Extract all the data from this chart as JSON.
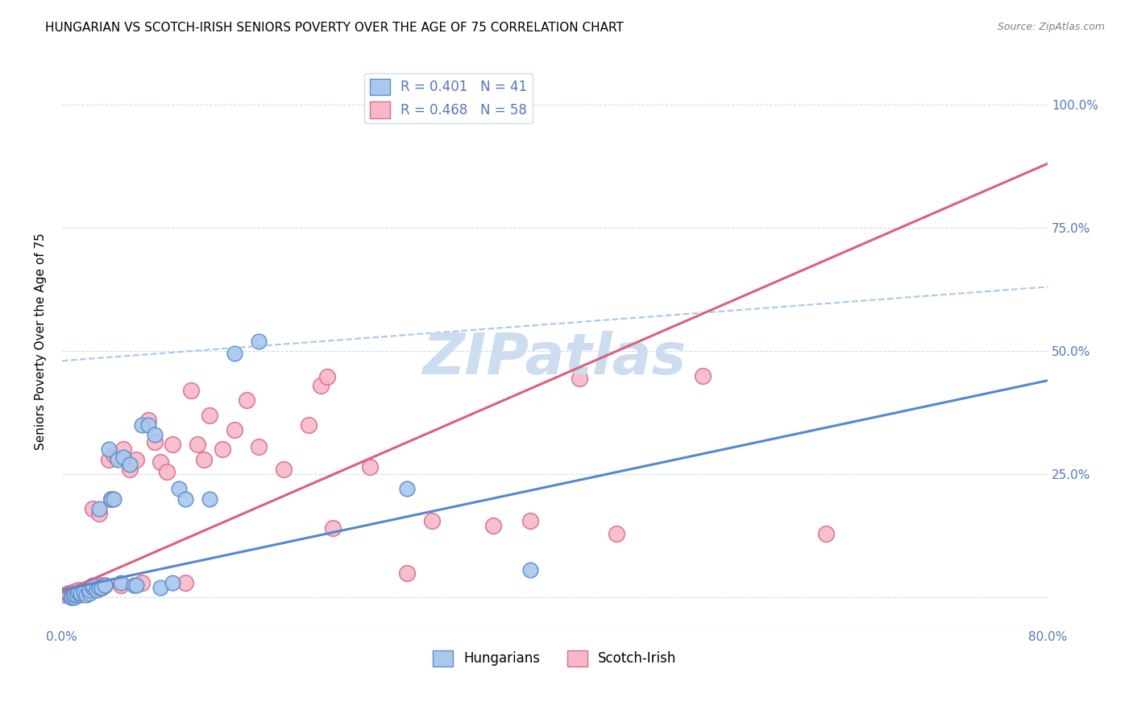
{
  "title": "HUNGARIAN VS SCOTCH-IRISH SENIORS POVERTY OVER THE AGE OF 75 CORRELATION CHART",
  "source": "Source: ZipAtlas.com",
  "ylabel": "Seniors Poverty Over the Age of 75",
  "yticks": [
    0.0,
    0.25,
    0.5,
    0.75,
    1.0
  ],
  "ytick_labels_right": [
    "",
    "25.0%",
    "50.0%",
    "75.0%",
    "100.0%"
  ],
  "xlim": [
    0.0,
    0.8
  ],
  "ylim": [
    -0.06,
    1.1
  ],
  "xticks": [
    0.0,
    0.1,
    0.2,
    0.3,
    0.4,
    0.5,
    0.6,
    0.7,
    0.8
  ],
  "xtick_labels": [
    "0.0%",
    "",
    "",
    "",
    "",
    "",
    "",
    "",
    "80.0%"
  ],
  "legend_items": [
    {
      "label": "R = 0.401   N = 41",
      "color": "#a8c8f0"
    },
    {
      "label": "R = 0.468   N = 58",
      "color": "#f8b8c8"
    }
  ],
  "hungarian_scatter_x": [
    0.005,
    0.007,
    0.008,
    0.01,
    0.01,
    0.012,
    0.013,
    0.015,
    0.015,
    0.018,
    0.02,
    0.022,
    0.022,
    0.025,
    0.025,
    0.028,
    0.03,
    0.03,
    0.032,
    0.035,
    0.038,
    0.04,
    0.042,
    0.045,
    0.048,
    0.05,
    0.055,
    0.058,
    0.06,
    0.065,
    0.07,
    0.075,
    0.08,
    0.09,
    0.095,
    0.1,
    0.12,
    0.14,
    0.16,
    0.28,
    0.38
  ],
  "hungarian_scatter_y": [
    0.005,
    0.0,
    0.0,
    0.0,
    0.005,
    0.005,
    0.01,
    0.005,
    0.008,
    0.01,
    0.005,
    0.008,
    0.015,
    0.02,
    0.025,
    0.015,
    0.02,
    0.18,
    0.02,
    0.025,
    0.3,
    0.2,
    0.2,
    0.28,
    0.03,
    0.285,
    0.27,
    0.025,
    0.025,
    0.35,
    0.35,
    0.33,
    0.02,
    0.03,
    0.22,
    0.2,
    0.2,
    0.495,
    0.52,
    0.22,
    0.055
  ],
  "scotchirish_scatter_x": [
    0.003,
    0.005,
    0.007,
    0.008,
    0.01,
    0.01,
    0.012,
    0.013,
    0.015,
    0.015,
    0.018,
    0.02,
    0.022,
    0.022,
    0.025,
    0.025,
    0.028,
    0.03,
    0.03,
    0.032,
    0.035,
    0.038,
    0.04,
    0.042,
    0.045,
    0.048,
    0.05,
    0.055,
    0.06,
    0.065,
    0.07,
    0.075,
    0.08,
    0.085,
    0.09,
    0.1,
    0.105,
    0.11,
    0.115,
    0.12,
    0.13,
    0.14,
    0.15,
    0.16,
    0.18,
    0.2,
    0.21,
    0.215,
    0.22,
    0.25,
    0.28,
    0.3,
    0.35,
    0.38,
    0.42,
    0.45,
    0.52,
    0.62
  ],
  "scotchirish_scatter_y": [
    0.005,
    0.008,
    0.005,
    0.01,
    0.008,
    0.012,
    0.01,
    0.015,
    0.008,
    0.012,
    0.015,
    0.008,
    0.01,
    0.02,
    0.015,
    0.18,
    0.02,
    0.025,
    0.17,
    0.02,
    0.025,
    0.28,
    0.2,
    0.29,
    0.285,
    0.025,
    0.3,
    0.26,
    0.28,
    0.03,
    0.36,
    0.315,
    0.275,
    0.255,
    0.31,
    0.03,
    0.42,
    0.31,
    0.28,
    0.37,
    0.3,
    0.34,
    0.4,
    0.305,
    0.26,
    0.35,
    0.43,
    0.448,
    0.14,
    0.265,
    0.05,
    0.155,
    0.145,
    0.155,
    0.445,
    0.13,
    0.45,
    0.13
  ],
  "hungarian_line_x": [
    0.0,
    0.8
  ],
  "hungarian_line_y": [
    0.015,
    0.44
  ],
  "scotchirish_line_x": [
    0.0,
    0.8
  ],
  "scotchirish_line_y": [
    0.01,
    0.88
  ],
  "dash_line_x": [
    0.0,
    0.8
  ],
  "dash_line_y": [
    0.48,
    0.63
  ],
  "hungarian_face_color": "#a8c8f0",
  "hungarian_edge_color": "#6090c8",
  "scotchirish_face_color": "#f8b8c8",
  "scotchirish_edge_color": "#d87090",
  "hungarian_line_color": "#5588cc",
  "scotchirish_line_color": "#d86080",
  "dash_color": "#a8c8e8",
  "watermark_text": "ZIPatlas",
  "watermark_color": "#ccddf0",
  "axis_label_color": "#5577bb",
  "grid_color": "#ccddee",
  "title_fontsize": 11,
  "source_fontsize": 9
}
